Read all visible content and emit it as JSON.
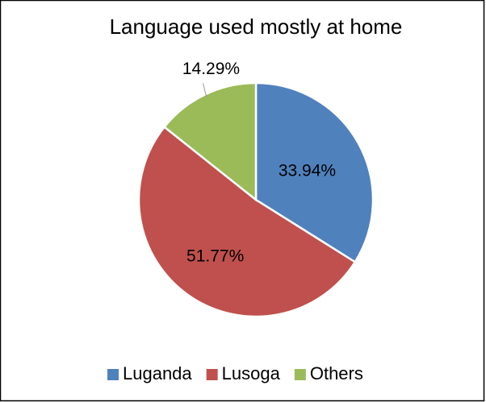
{
  "chart_data": {
    "type": "pie",
    "title": "Language used mostly at home",
    "categories": [
      "Luganda",
      "Lusoga",
      "Others"
    ],
    "values": [
      33.94,
      51.77,
      14.29
    ],
    "value_labels": [
      "33.94%",
      "51.77%",
      "14.29%"
    ],
    "colors": [
      "#4f81bd",
      "#c0504d",
      "#9bbb59"
    ],
    "legend": "bottom"
  }
}
